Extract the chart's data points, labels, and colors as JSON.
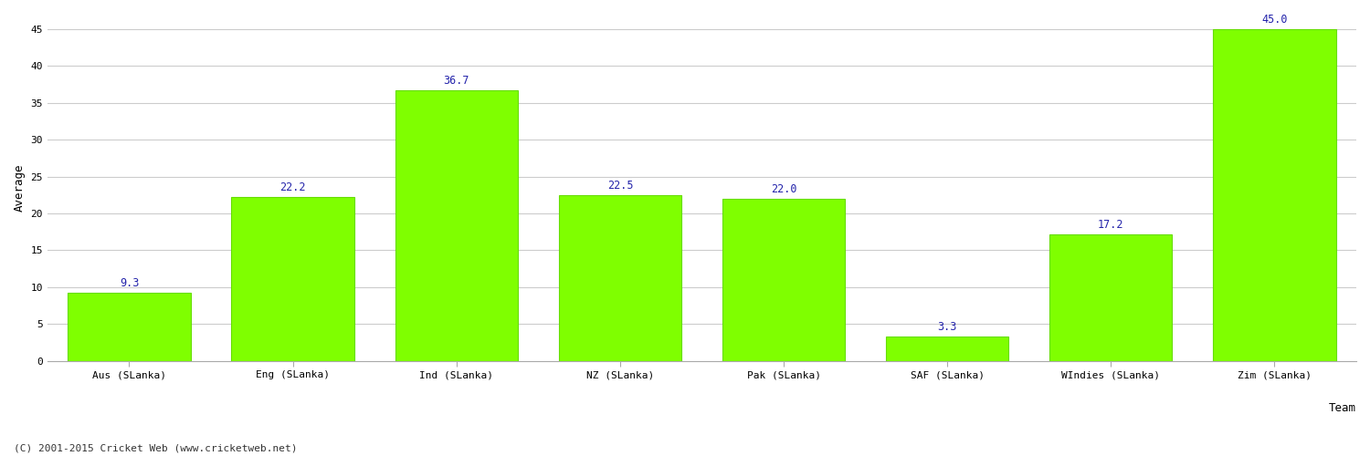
{
  "categories": [
    "Aus (SLanka)",
    "Eng (SLanka)",
    "Ind (SLanka)",
    "NZ (SLanka)",
    "Pak (SLanka)",
    "SAF (SLanka)",
    "WIndies (SLanka)",
    "Zim (SLanka)"
  ],
  "values": [
    9.3,
    22.2,
    36.7,
    22.5,
    22.0,
    3.3,
    17.2,
    45.0
  ],
  "bar_color": "#7FFF00",
  "bar_edge_color": "#66DD00",
  "label_color": "#2222AA",
  "ylabel": "Average",
  "xlabel": "Team",
  "ylim": [
    0,
    47
  ],
  "yticks": [
    0,
    5,
    10,
    15,
    20,
    25,
    30,
    35,
    40,
    45
  ],
  "background_color": "#ffffff",
  "grid_color": "#cccccc",
  "footer": "(C) 2001-2015 Cricket Web (www.cricketweb.net)",
  "label_fontsize": 8.5,
  "axis_label_fontsize": 9,
  "tick_fontsize": 8,
  "footer_fontsize": 8,
  "bar_width": 0.75
}
